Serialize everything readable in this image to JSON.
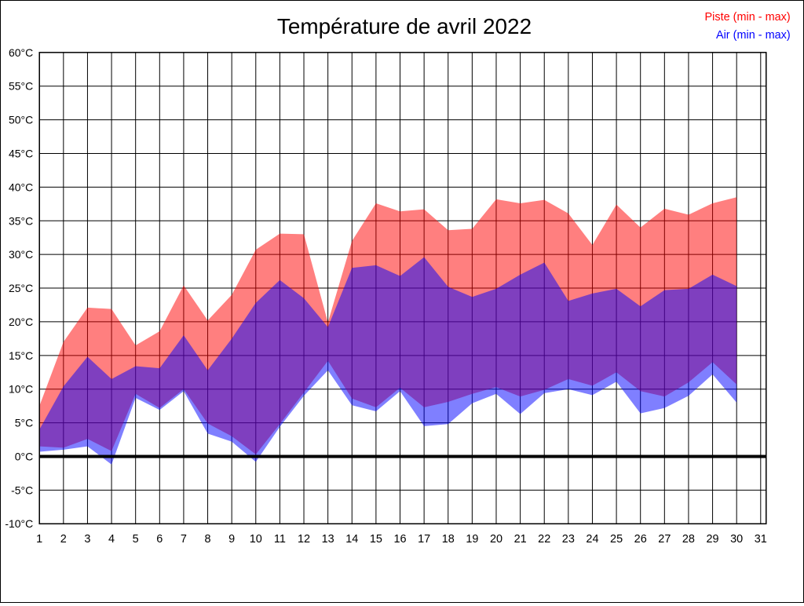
{
  "header": {
    "title": "Température de avril 2022"
  },
  "legend": [
    {
      "label": "Piste (min - max)",
      "color": "#ff0000"
    },
    {
      "label": "Air (min - max)",
      "color": "#0000ff"
    }
  ],
  "chart_data": {
    "type": "area",
    "title": "Température de avril 2022",
    "x_axis_tick_labels": [
      1,
      2,
      3,
      4,
      5,
      6,
      7,
      8,
      9,
      10,
      11,
      12,
      13,
      14,
      15,
      16,
      17,
      18,
      19,
      20,
      21,
      22,
      23,
      24,
      25,
      26,
      27,
      28,
      29,
      30,
      31
    ],
    "days": [
      1,
      2,
      3,
      4,
      5,
      6,
      7,
      8,
      9,
      10,
      11,
      12,
      13,
      14,
      15,
      16,
      17,
      18,
      19,
      20,
      21,
      22,
      23,
      24,
      25,
      26,
      27,
      28,
      29,
      30
    ],
    "y_axis": {
      "min": -10,
      "max": 60,
      "step": 5,
      "unit": "°C"
    },
    "grid": true,
    "legend_position": "top-right",
    "zero_line": {
      "value": 0,
      "color": "#000000"
    },
    "series": [
      {
        "name": "Piste (min - max)",
        "band": true,
        "legend_color": "#ff0000",
        "fill": "rgba(255,0,0,0.5)",
        "max": [
          7.5,
          17,
          22.1,
          21.9,
          16.5,
          18.6,
          25.4,
          20.2,
          24,
          30.7,
          33.1,
          33,
          19.9,
          32,
          37.6,
          36.4,
          36.7,
          33.6,
          33.8,
          38.2,
          37.6,
          38.1,
          36.1,
          31.4,
          37.4,
          34,
          36.8,
          35.9,
          37.6,
          38.5
        ],
        "min": [
          1.5,
          1.3,
          2.6,
          0.8,
          9.3,
          7.2,
          10,
          4.9,
          3,
          0.3,
          4.8,
          9.5,
          14.2,
          8.6,
          7.3,
          10.2,
          7.3,
          8.1,
          9.3,
          10.3,
          8.9,
          9.9,
          11.5,
          10.5,
          12.5,
          9.7,
          8.9,
          11,
          14,
          10.7
        ]
      },
      {
        "name": "Air (min - max)",
        "band": true,
        "legend_color": "#0000ff",
        "fill": "rgba(0,0,255,0.5)",
        "max": [
          4,
          10.4,
          14.8,
          11.5,
          13.4,
          13.1,
          18,
          12.8,
          17.5,
          22.8,
          26.2,
          23.5,
          19.2,
          28,
          28.4,
          26.8,
          29.6,
          25.2,
          23.7,
          24.9,
          27,
          28.8,
          23.1,
          24.2,
          24.9,
          22.3,
          24.7,
          24.9,
          27,
          25.3
        ],
        "min": [
          0.7,
          1,
          1.5,
          -1.2,
          8.7,
          6.9,
          9.7,
          3.4,
          2.2,
          -0.8,
          4.4,
          9,
          12.8,
          7.6,
          6.7,
          9.7,
          4.5,
          4.8,
          7.9,
          9.3,
          6.3,
          9.4,
          10,
          9.1,
          11.1,
          6.4,
          7.2,
          9,
          12.2,
          8
        ]
      }
    ]
  }
}
